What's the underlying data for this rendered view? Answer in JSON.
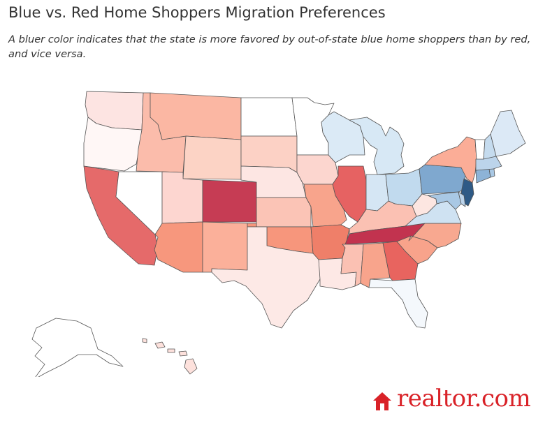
{
  "title": "Blue vs. Red Home Shoppers Migration Preferences",
  "subtitle": "A bluer color indicates that the state is more favored by out-of-state blue home shoppers than by red, and vice versa.",
  "brand": {
    "name": "realtor.com",
    "color": "#d92228",
    "icon": "house-logo-icon"
  },
  "scale": {
    "blue_strong": "#2e5f8a",
    "neutral": "#ffffff",
    "red_strong": "#c4304f"
  },
  "states": [
    {
      "name": "WA",
      "color": "#fde4e2"
    },
    {
      "name": "OR",
      "color": "#fff7f6"
    },
    {
      "name": "CA",
      "color": "#e56a6a"
    },
    {
      "name": "NV",
      "color": "#ffffff"
    },
    {
      "name": "ID",
      "color": "#fbbcab"
    },
    {
      "name": "MT",
      "color": "#fbb7a3"
    },
    {
      "name": "WY",
      "color": "#fcd3c5"
    },
    {
      "name": "UT",
      "color": "#fdd6d0"
    },
    {
      "name": "AZ",
      "color": "#f7977d"
    },
    {
      "name": "CO",
      "color": "#c63c54"
    },
    {
      "name": "NM",
      "color": "#fbb09a"
    },
    {
      "name": "ND",
      "color": "#ffffff"
    },
    {
      "name": "SD",
      "color": "#fcd1c5"
    },
    {
      "name": "NE",
      "color": "#fde6e3"
    },
    {
      "name": "KS",
      "color": "#fbc4b6"
    },
    {
      "name": "OK",
      "color": "#f7967c"
    },
    {
      "name": "TX",
      "color": "#fde9e6"
    },
    {
      "name": "MN",
      "color": "#ffffff"
    },
    {
      "name": "IA",
      "color": "#fcd6cf"
    },
    {
      "name": "MO",
      "color": "#f8a48c"
    },
    {
      "name": "AR",
      "color": "#ef7f69"
    },
    {
      "name": "LA",
      "color": "#fde8e5"
    },
    {
      "name": "WI",
      "color": "#dbeaf6"
    },
    {
      "name": "IL",
      "color": "#e66262"
    },
    {
      "name": "MI",
      "color": "#d7e8f5"
    },
    {
      "name": "IN",
      "color": "#d5e6f4"
    },
    {
      "name": "OH",
      "color": "#c1daee"
    },
    {
      "name": "KY",
      "color": "#fbc1b3"
    },
    {
      "name": "TN",
      "color": "#c2334f"
    },
    {
      "name": "MS",
      "color": "#fbc1b3"
    },
    {
      "name": "AL",
      "color": "#f8a48c"
    },
    {
      "name": "GA",
      "color": "#e8645f"
    },
    {
      "name": "FL",
      "color": "#f4f8fc"
    },
    {
      "name": "SC",
      "color": "#f8a38b"
    },
    {
      "name": "NC",
      "color": "#f8a890"
    },
    {
      "name": "VA",
      "color": "#cfe2f2"
    },
    {
      "name": "WV",
      "color": "#fde6e1"
    },
    {
      "name": "PA",
      "color": "#7fa8cf"
    },
    {
      "name": "NY",
      "color": "#fbad97"
    },
    {
      "name": "NJ",
      "color": "#2e5a86"
    },
    {
      "name": "MD",
      "color": "#a9c8e4"
    },
    {
      "name": "DE",
      "color": "#bcd4eb"
    },
    {
      "name": "CT",
      "color": "#8db3d7"
    },
    {
      "name": "MA",
      "color": "#bcd4eb"
    },
    {
      "name": "RI",
      "color": "#a9c8e4"
    },
    {
      "name": "VT",
      "color": "#ffffff"
    },
    {
      "name": "NH",
      "color": "#c5dbee"
    },
    {
      "name": "ME",
      "color": "#dce9f6"
    },
    {
      "name": "AK",
      "color": "#ffffff"
    },
    {
      "name": "HI",
      "color": "#fde1dc"
    }
  ]
}
